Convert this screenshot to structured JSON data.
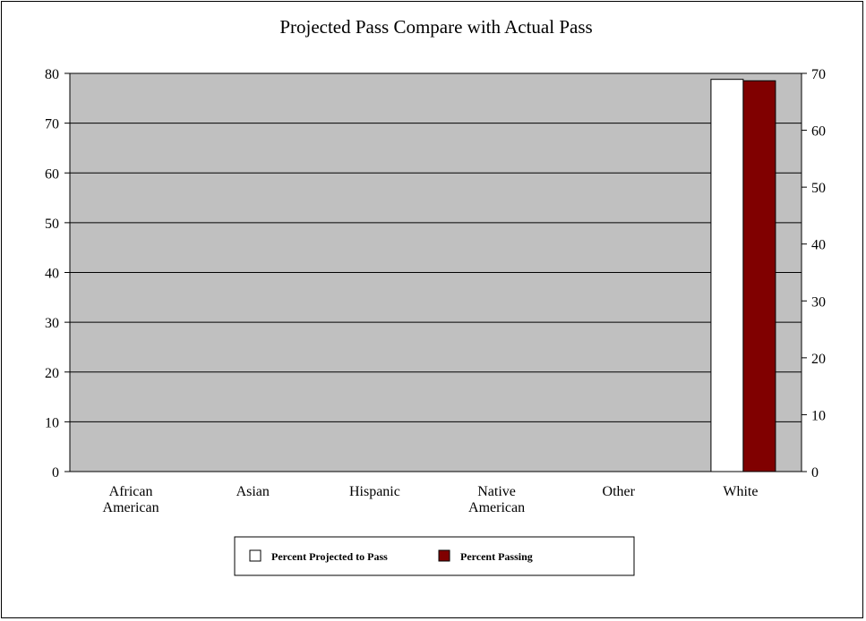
{
  "chart_data": {
    "type": "bar",
    "title": "Projected Pass Compare with Actual Pass",
    "categories": [
      [
        "African",
        "American"
      ],
      [
        "Asian"
      ],
      [
        "Hispanic"
      ],
      [
        "Native",
        "American"
      ],
      [
        "Other"
      ],
      [
        "White"
      ]
    ],
    "series": [
      {
        "name": "Percent Projected to Pass",
        "axis": "left",
        "values": [
          null,
          null,
          null,
          null,
          null,
          78.8
        ],
        "color": "#ffffff"
      },
      {
        "name": "Percent Passing",
        "axis": "right",
        "values": [
          null,
          null,
          null,
          null,
          null,
          68.7
        ],
        "color": "#800000"
      }
    ],
    "y_left": {
      "min": 0,
      "max": 80,
      "ticks": [
        0,
        10,
        20,
        30,
        40,
        50,
        60,
        70,
        80
      ]
    },
    "y_right": {
      "min": 0,
      "max": 70,
      "ticks": [
        0,
        10,
        20,
        30,
        40,
        50,
        60,
        70
      ]
    },
    "plot_background": "#c0c0c0",
    "grid": true,
    "legend_position": "bottom"
  }
}
